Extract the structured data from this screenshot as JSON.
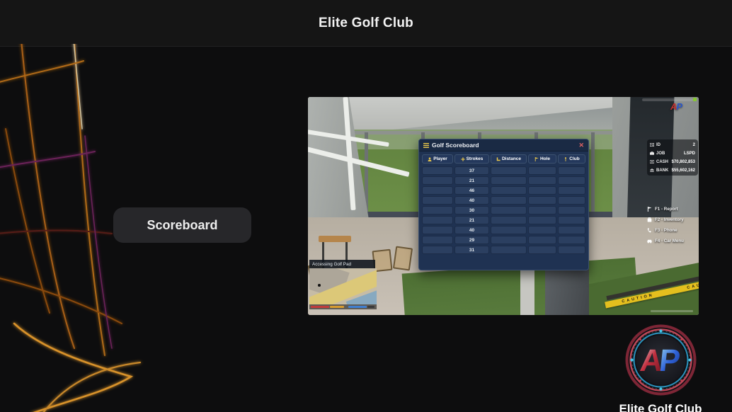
{
  "header": {
    "title": "Elite Golf Club"
  },
  "post": {
    "scoreboard_button": "Scoreboard"
  },
  "footer": {
    "logo_a": "A",
    "logo_p": "P",
    "brand": "Elite Golf Club"
  },
  "game": {
    "watermark_a": "A",
    "watermark_p": "P",
    "scoreboard": {
      "title": "Golf Scoreboard",
      "close": "✕",
      "columns": [
        {
          "label": "Player",
          "icon": "player-icon"
        },
        {
          "label": "Strokes",
          "icon": "plus-icon"
        },
        {
          "label": "Distance",
          "icon": "ruler-icon"
        },
        {
          "label": "Hole",
          "icon": "flag-icon"
        },
        {
          "label": "Club",
          "icon": "golf-club-icon"
        }
      ],
      "strokes_values": [
        "37",
        "21",
        "46",
        "40",
        "30",
        "21",
        "40",
        "29",
        "31"
      ]
    },
    "hud": {
      "stats": [
        {
          "label": "ID",
          "value": "2"
        },
        {
          "label": "JOB",
          "value": "LSPD"
        },
        {
          "label": "CASH",
          "value": "$70,802,853"
        },
        {
          "label": "BANK",
          "value": "$55,602,162"
        }
      ],
      "hotkeys": [
        {
          "label": "F1 - Report"
        },
        {
          "label": "F2 - Inventory"
        },
        {
          "label": "F3 - Phone"
        },
        {
          "label": "F4 - Car Menu"
        }
      ]
    },
    "minimap": {
      "notification": "Accessing Golf Pad"
    },
    "caution": "CAUTION"
  },
  "colors": {
    "accent_gold": "#e7c54b",
    "panel_blue": "#1f3252",
    "close_red": "#e06262",
    "caution_yellow": "#e4bf1e",
    "logo_red": "#c03434",
    "logo_blue": "#2f62d8"
  }
}
